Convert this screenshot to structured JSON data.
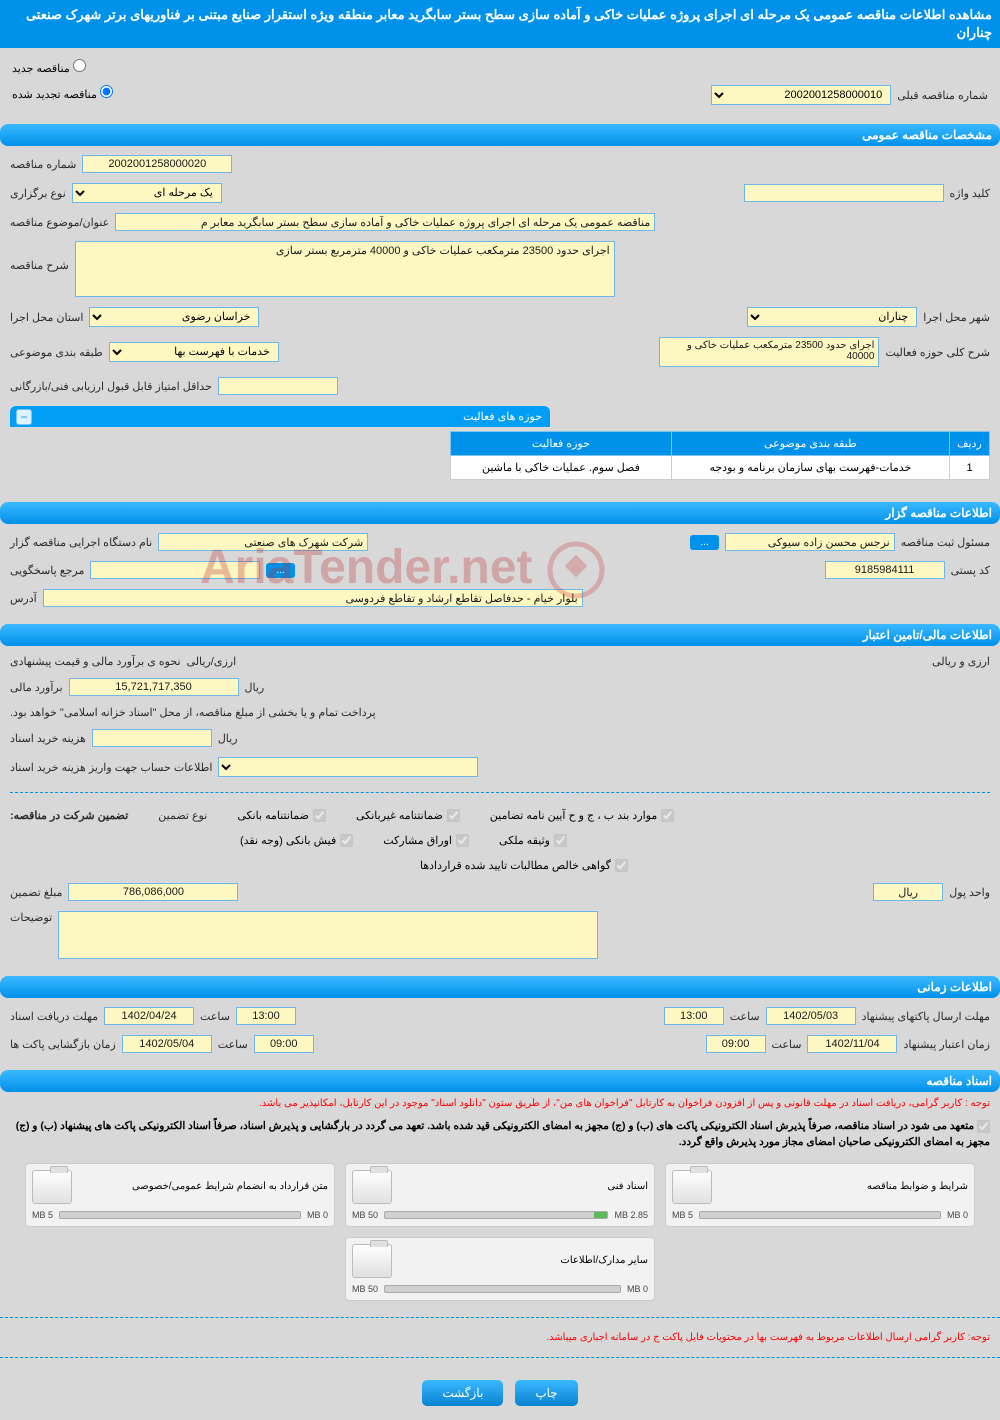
{
  "colors": {
    "header_bg": "#0091ea",
    "field_bg": "#fdf8c2",
    "field_border": "#6fb7e8",
    "page_bg": "#d8d8d8"
  },
  "main_title": "مشاهده اطلاعات مناقصه عمومی یک مرحله ای اجرای پروژه عملیات خاکی و آماده سازی سطح بستر سابگرید معابر منطقه ویژه استقرار صنایع مبتنی بر فناوریهای برتر شهرک صنعتی چناران",
  "radio": {
    "new_label": "مناقصه جدید",
    "renewed_label": "مناقصه تجدید شده",
    "prev_num_label": "شماره مناقصه قبلی",
    "prev_num_value": "2002001258000010"
  },
  "sections": {
    "general": "مشخصات مناقصه عمومی",
    "holder": "اطلاعات مناقصه گزار",
    "finance": "اطلاعات مالی/تامین اعتبار",
    "time": "اطلاعات زمانی",
    "docs": "اسناد مناقصه"
  },
  "general": {
    "num_label": "شماره مناقصه",
    "num_value": "2002001258000020",
    "type_label": "نوع برگزاری",
    "type_value": "یک مرحله ای",
    "keyword_label": "کلید واژه",
    "keyword_value": "",
    "subject_label": "عنوان/موضوع مناقصه",
    "subject_value": "مناقصه عمومی یک مرحله ای اجرای پروژه عملیات خاکی و آماده سازی سطح بستر سابگرید معابر م",
    "desc_label": "شرح مناقصه",
    "desc_value": "اجرای حدود 23500 مترمکعب عملیات خاکی و 40000 مترمربع بستر سازی",
    "province_label": "استان محل اجرا",
    "province_value": "خراسان رضوی",
    "city_label": "شهر محل اجرا",
    "city_value": "چناران",
    "cat_label": "طبقه بندی موضوعی",
    "cat_value": "خدمات با فهرست بها",
    "scope_label": "شرح کلی حوزه فعالیت",
    "scope_value": "اجرای حدود 23500 مترمکعب عملیات خاکی و 40000",
    "min_score_label": "حداقل امتیاز قابل قبول ارزیابی فنی/بازرگانی",
    "min_score_value": ""
  },
  "activity_table": {
    "title": "حوزه های فعالیت",
    "headers": {
      "row": "ردیف",
      "cat": "طبقه بندی موضوعی",
      "scope": "حوزه فعالیت"
    },
    "rows": [
      {
        "n": "1",
        "cat": "خدمات-فهرست بهای سازمان برنامه و بودجه",
        "scope": "فصل سوم. عملیات خاکی با ماشین"
      }
    ]
  },
  "holder": {
    "org_label": "نام دستگاه اجرایی مناقصه گزار",
    "org_value": "شرکت شهرک های صنعتی",
    "resp_label": "مسئول ثبت مناقصه",
    "resp_value": "نرجس محسن زاده سیوکی",
    "contact_label": "مرجع پاسخگویی",
    "postal_label": "کد پستی",
    "postal_value": "9185984111",
    "address_label": "آدرس",
    "address_value": "بلوار خیام - حدفاصل تقاطع ارشاد و تقاطع فردوسی"
  },
  "finance": {
    "method_label": "نحوه ی برآورد مالی و قیمت پیشنهادی",
    "method_value": "ارزی/ریالی",
    "currency_label": "ارزی و ریالی",
    "est_label": "برآورد مالی",
    "est_value": "15,721,717,350",
    "unit": "ریال",
    "payment_note": "پرداخت تمام و یا بخشی از مبلغ مناقصه، از محل \"اسناد خزانه اسلامی\" خواهد بود.",
    "doc_fee_label": "هزینه خرید اسناد",
    "doc_fee_value": "",
    "doc_fee_unit": "ریال",
    "account_label": "اطلاعات حساب جهت واریز هزینه خرید اسناد",
    "guarantee_title": "تضمین شرکت در مناقصه:",
    "guarantee_type_label": "نوع تضمین",
    "checks": {
      "bank_guarantee": "ضمانتنامه بانکی",
      "nonbank_guarantee": "ضمانتنامه غیربانکی",
      "bylaw": "موارد بند ب ، ج و ح آیین نامه تضامین",
      "cash": "فیش بانکی (وجه نقد)",
      "securities": "اوراق مشارکت",
      "property": "وثیقه ملکی",
      "cert": "گواهی خالص مطالبات تایید شده قراردادها"
    },
    "guarantee_amount_label": "مبلغ تضمین",
    "guarantee_amount_value": "786,086,000",
    "currency_unit_label": "واحد پول",
    "currency_unit_value": "ریال",
    "notes_label": "توضیحات"
  },
  "time": {
    "doc_deadline_label": "مهلت دریافت اسناد",
    "doc_deadline_date": "1402/04/24",
    "doc_deadline_time_lbl": "ساعت",
    "doc_deadline_time": "13:00",
    "offer_deadline_label": "مهلت ارسال پاکتهای پیشنهاد",
    "offer_deadline_date": "1402/05/03",
    "offer_deadline_time": "13:00",
    "open_label": "زمان بازگشایی پاکت ها",
    "open_date": "1402/05/04",
    "open_time": "09:00",
    "validity_label": "زمان اعتبار پیشنهاد",
    "validity_date": "1402/11/04",
    "validity_time": "09:00"
  },
  "docs": {
    "note1": "توجه : کاربر گرامی، دریافت اسناد در مهلت قانونی و پس از افزودن فراخوان به کارتابل \"فراخوان های من\"، از طریق ستون \"دانلود اسناد\" موجود در این کارتابل، امکانپذیر می باشد.",
    "note2_lead": "متعهد می شود در اسناد مناقصه، صرفاً پذیرش اسناد الکترونیکی پاکت های (ب) و (ج) مجهز به امضای الکترونیکی قید شده باشد. تعهد می گردد در بارگشایی و پذیرش اسناد، صرفاً اسناد الکترونیکی پاکت های پیشنهاد (ب) و (ج) مجهز به امضای الکترونیکی صاحبان امضای مجاز مورد پذیرش واقع گردد.",
    "cards": [
      {
        "title": "شرایط و ضوابط مناقصه",
        "used": "0 MB",
        "total": "5 MB",
        "pct": 0
      },
      {
        "title": "اسناد فنی",
        "used": "2.85 MB",
        "total": "50 MB",
        "pct": 6
      },
      {
        "title": "متن قرارداد به انضمام شرایط عمومی/خصوصی",
        "used": "0 MB",
        "total": "5 MB",
        "pct": 0
      },
      {
        "title": "سایر مدارک/اطلاعات",
        "used": "0 MB",
        "total": "50 MB",
        "pct": 0
      }
    ],
    "bottom_note": "توجه: کاربر گرامی ارسال اطلاعات مربوط به فهرست بها در محتویات فایل پاکت ج در سامانه اجباری میباشد."
  },
  "buttons": {
    "back": "بازگشت",
    "print": "چاپ",
    "dots": "..."
  },
  "watermark": "AriaTender.net"
}
